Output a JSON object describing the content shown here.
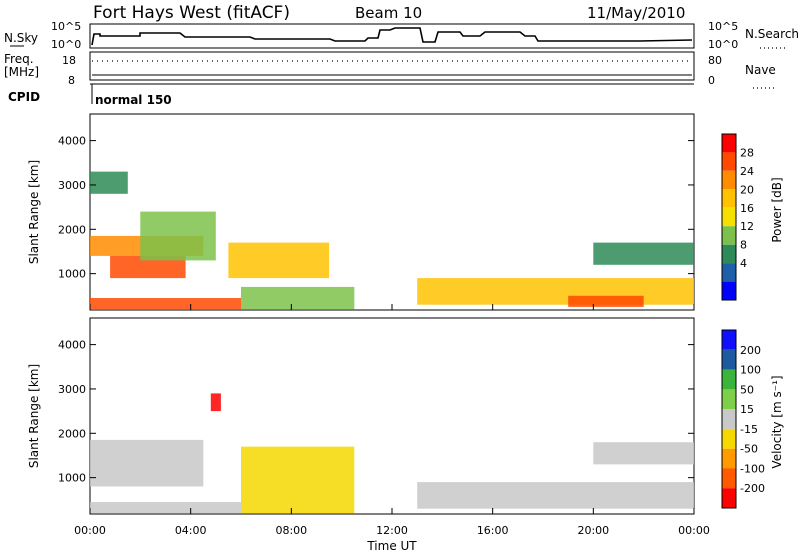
{
  "header": {
    "radar": "Fort Hays West (fitACF)",
    "beam": "Beam 10",
    "date": "11/May/2010"
  },
  "summary_panels": {
    "nsky_label": "N.Sky",
    "nsearch_label": "N.Search",
    "freq_label": "Freq.",
    "freq_unit": "[MHz]",
    "nave_label": "Nave",
    "cpid_label": "CPID",
    "cpid_value": "normal 150",
    "noise_ticks": [
      "10^5",
      "10^0"
    ],
    "freq_ticks": [
      "18",
      "8"
    ],
    "nave_ticks": [
      "80",
      "0"
    ]
  },
  "power_colorbar": {
    "label": "Power [dB]",
    "ticks": [
      "28",
      "24",
      "20",
      "16",
      "12",
      "8",
      "4"
    ],
    "colors": [
      "#ff0000",
      "#ff4a00",
      "#ff8c00",
      "#ffc200",
      "#f5e000",
      "#7cc24a",
      "#2e8b57",
      "#1f5ea8",
      "#0000ff"
    ]
  },
  "velocity_colorbar": {
    "label": "Velocity [m s⁻¹]",
    "ticks": [
      "200",
      "100",
      "50",
      "15",
      "-15",
      "-50",
      "-100",
      "-200"
    ],
    "colors": [
      "#1010ff",
      "#1e5aa0",
      "#3cb43c",
      "#7ed04a",
      "#c8c8c8",
      "#f5d800",
      "#ff9a00",
      "#ff5a00",
      "#ff0000"
    ]
  },
  "chart_data": [
    {
      "type": "heatmap",
      "title": "Power",
      "xlabel": "Time UT",
      "ylabel": "Slant Range [km]",
      "x_ticks": [
        "00:00",
        "04:00",
        "08:00",
        "12:00",
        "16:00",
        "20:00",
        "00:00"
      ],
      "y_ticks": [
        1000,
        2000,
        3000,
        4000
      ],
      "xlim": [
        0,
        24
      ],
      "ylim": [
        180,
        4600
      ],
      "clim": [
        0,
        32
      ],
      "regions": [
        {
          "t": [
            0.0,
            4.5
          ],
          "r": [
            1400,
            1850
          ],
          "value": 22
        },
        {
          "t": [
            0.8,
            3.8
          ],
          "r": [
            900,
            1400
          ],
          "value": 26
        },
        {
          "t": [
            2.0,
            5.0
          ],
          "r": [
            1300,
            2400
          ],
          "value": 14
        },
        {
          "t": [
            0.0,
            6.0
          ],
          "r": [
            200,
            450
          ],
          "value": 28
        },
        {
          "t": [
            5.5,
            9.5
          ],
          "r": [
            900,
            1700
          ],
          "value": 18
        },
        {
          "t": [
            6.0,
            10.5
          ],
          "r": [
            200,
            700
          ],
          "value": 12
        },
        {
          "t": [
            13.0,
            24.0
          ],
          "r": [
            300,
            900
          ],
          "value": 20
        },
        {
          "t": [
            19.0,
            22.0
          ],
          "r": [
            250,
            500
          ],
          "value": 28
        },
        {
          "t": [
            20.0,
            24.0
          ],
          "r": [
            1200,
            1700
          ],
          "value": 10
        },
        {
          "t": [
            0.0,
            1.5
          ],
          "r": [
            2800,
            3300
          ],
          "value": 8
        }
      ]
    },
    {
      "type": "heatmap",
      "title": "Velocity",
      "xlabel": "Time UT",
      "ylabel": "Slant Range [km]",
      "x_ticks": [
        "00:00",
        "04:00",
        "08:00",
        "12:00",
        "16:00",
        "20:00",
        "00:00"
      ],
      "y_ticks": [
        1000,
        2000,
        3000,
        4000
      ],
      "xlim": [
        0,
        24
      ],
      "ylim": [
        180,
        4600
      ],
      "clim": [
        -200,
        200
      ],
      "regions": [
        {
          "t": [
            0.0,
            4.5
          ],
          "r": [
            800,
            1850
          ],
          "value": 0
        },
        {
          "t": [
            0.0,
            6.0
          ],
          "r": [
            200,
            450
          ],
          "value": 0
        },
        {
          "t": [
            4.8,
            5.2
          ],
          "r": [
            2500,
            2900
          ],
          "value": -200
        },
        {
          "t": [
            6.0,
            10.5
          ],
          "r": [
            200,
            1700
          ],
          "value": -60
        },
        {
          "t": [
            13.0,
            24.0
          ],
          "r": [
            300,
            900
          ],
          "value": 0
        },
        {
          "t": [
            20.0,
            24.0
          ],
          "r": [
            1300,
            1800
          ],
          "value": 0
        }
      ]
    }
  ]
}
